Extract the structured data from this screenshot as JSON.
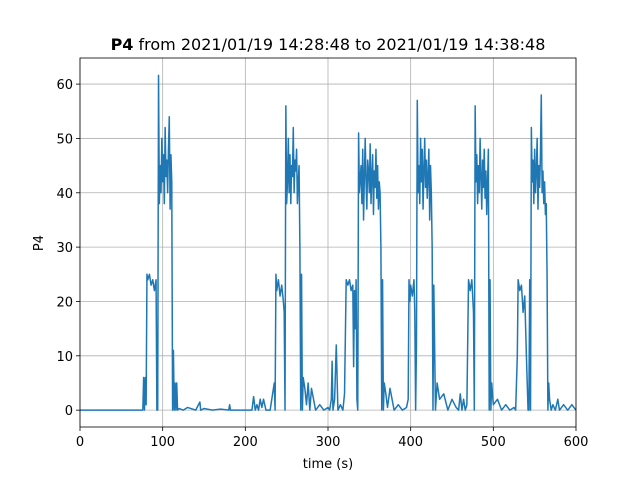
{
  "chart_data": {
    "type": "line",
    "title": [
      "P4",
      "from 2021/01/19 14:28:48 to 2021/01/19 14:38:48"
    ],
    "xlabel": "time (s)",
    "ylabel": "P4",
    "color": "#1f77b4",
    "grid": true,
    "xlim": [
      0,
      600
    ],
    "xticks": [
      0,
      100,
      200,
      300,
      400,
      500,
      600
    ],
    "ylim": [
      -3.1,
      64.8
    ],
    "yticks": [
      0,
      10,
      20,
      30,
      40,
      50,
      60
    ],
    "x": [
      0,
      76,
      77,
      78,
      79,
      80,
      81,
      82,
      84,
      86,
      88,
      90,
      92,
      93,
      94,
      95,
      96,
      97,
      98,
      99,
      100,
      101,
      102,
      103,
      104,
      105,
      106,
      107,
      108,
      109,
      110,
      111,
      112,
      113,
      114,
      115,
      116,
      117,
      118,
      120,
      125,
      130,
      140,
      145,
      146,
      150,
      160,
      170,
      180,
      181,
      182,
      190,
      200,
      208,
      210,
      212,
      214,
      216,
      218,
      220,
      222,
      225,
      230,
      235,
      236,
      237,
      238,
      240,
      242,
      244,
      246,
      247,
      248,
      249,
      250,
      251,
      252,
      253,
      254,
      255,
      256,
      257,
      258,
      259,
      260,
      261,
      262,
      263,
      264,
      265,
      266,
      267,
      268,
      269,
      270,
      272,
      274,
      276,
      278,
      280,
      285,
      290,
      295,
      300,
      302,
      304,
      305,
      306,
      308,
      310,
      312,
      315,
      318,
      320,
      322,
      324,
      326,
      328,
      330,
      331,
      332,
      333,
      334,
      335,
      336,
      337,
      338,
      340,
      341,
      342,
      343,
      344,
      345,
      346,
      347,
      348,
      349,
      350,
      351,
      352,
      353,
      354,
      355,
      356,
      357,
      358,
      359,
      360,
      361,
      362,
      363,
      364,
      365,
      366,
      367,
      368,
      370,
      372,
      375,
      380,
      385,
      390,
      395,
      397,
      398,
      399,
      400,
      402,
      404,
      405,
      406,
      407,
      408,
      409,
      410,
      411,
      412,
      413,
      414,
      415,
      416,
      417,
      418,
      419,
      420,
      421,
      422,
      423,
      424,
      425,
      426,
      427,
      428,
      430,
      432,
      435,
      440,
      445,
      450,
      455,
      458,
      460,
      462,
      464,
      466,
      468,
      470,
      472,
      474,
      476,
      477,
      478,
      479,
      480,
      481,
      482,
      483,
      484,
      485,
      486,
      487,
      488,
      489,
      490,
      491,
      492,
      493,
      494,
      495,
      496,
      497,
      498,
      500,
      505,
      510,
      515,
      520,
      525,
      527,
      529,
      530,
      532,
      534,
      536,
      538,
      540,
      542,
      543,
      544,
      545,
      546,
      547,
      548,
      549,
      550,
      551,
      552,
      553,
      554,
      555,
      556,
      557,
      558,
      559,
      560,
      561,
      562,
      563,
      564,
      565,
      566,
      567,
      568,
      570,
      572,
      575,
      578,
      580,
      585,
      590,
      595,
      600
    ],
    "values": [
      0,
      0,
      6,
      0,
      6,
      1,
      25,
      24,
      25,
      23,
      24,
      22,
      24,
      0,
      0,
      61.6,
      38,
      45,
      40,
      50,
      42,
      47,
      38,
      52,
      43,
      46,
      40,
      48,
      54,
      37,
      47,
      42,
      0,
      11,
      0,
      5,
      0,
      5,
      0,
      0.3,
      0,
      0.5,
      0,
      1.5,
      0,
      0.3,
      0,
      0.2,
      0,
      1,
      0,
      0,
      0,
      0,
      2.5,
      0,
      1,
      0,
      2,
      0.5,
      2,
      0,
      0,
      5,
      0,
      25,
      22,
      24,
      21,
      23,
      20,
      18,
      0,
      56,
      38,
      42,
      50,
      40,
      47,
      38,
      45,
      43,
      52,
      40,
      46,
      44,
      48,
      38,
      42,
      45,
      30,
      0,
      25,
      0,
      6,
      4,
      1,
      5,
      0,
      4,
      0,
      1,
      0,
      0.5,
      0,
      2,
      9,
      0,
      2,
      12,
      0,
      1,
      0,
      3,
      24,
      23,
      24,
      22,
      23,
      8,
      22,
      15,
      24,
      2,
      0,
      51,
      40,
      45,
      38,
      48,
      35,
      43,
      50,
      42,
      37,
      46,
      44,
      40,
      49,
      38,
      43,
      47,
      36,
      44,
      41,
      48,
      39,
      45,
      37,
      42,
      40,
      30,
      0,
      24,
      0,
      5,
      3,
      0.5,
      4,
      0,
      1,
      0,
      0.5,
      2,
      24,
      20,
      23,
      21,
      24,
      18,
      0,
      12,
      57,
      40,
      45,
      38,
      50,
      42,
      48,
      37,
      44,
      50,
      41,
      46,
      39,
      43,
      48,
      35,
      45,
      40,
      30,
      0,
      23,
      0,
      5,
      2,
      3,
      0,
      2,
      0.5,
      0,
      3,
      0,
      2,
      0,
      1,
      24,
      22,
      24,
      18,
      0,
      56,
      42,
      47,
      38,
      45,
      40,
      50,
      43,
      37,
      46,
      41,
      48,
      39,
      44,
      36,
      42,
      48,
      0,
      24,
      0,
      5,
      1,
      2,
      0,
      1,
      0,
      0.5,
      0,
      10,
      24,
      22,
      23,
      18,
      21,
      10,
      0,
      0,
      24,
      0,
      52,
      42,
      46,
      38,
      48,
      40,
      44,
      50,
      37,
      45,
      41,
      47,
      58,
      40,
      44,
      38,
      42,
      36,
      38,
      25,
      0,
      5,
      2,
      0,
      1,
      0,
      2,
      0,
      1,
      0,
      1,
      0
    ]
  }
}
